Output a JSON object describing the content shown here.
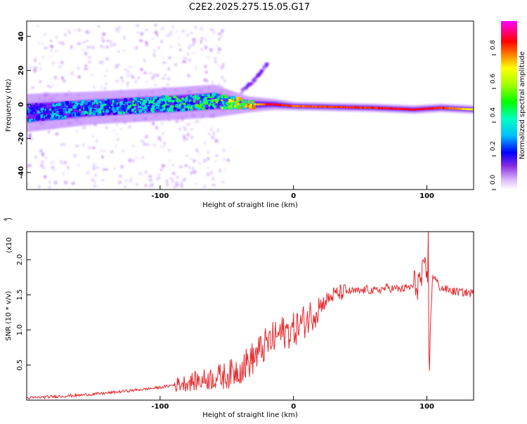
{
  "title": "C2E2.2025.275.15.05.G17",
  "colors": {
    "snr_line": "#e8262a",
    "axis": "#000000",
    "background": "#ffffff"
  },
  "chart_data": [
    {
      "type": "heatmap",
      "name": "spectrogram",
      "xlabel": "Height of straight line (km)",
      "ylabel": "Frequency (Hz)",
      "xlim": [
        -200,
        135
      ],
      "ylim": [
        -50,
        49
      ],
      "xticks": [
        -100,
        0,
        100
      ],
      "xtick_labels": [
        "-100",
        "0",
        "100"
      ],
      "yticks": [
        -40,
        -20,
        0,
        20,
        40
      ],
      "ytick_labels": [
        "-40",
        "-20",
        "0",
        "20",
        "40"
      ],
      "colorbar": {
        "label": "Normalized spectral amplitude",
        "range": [
          0,
          1
        ],
        "ticks": [
          0.0,
          0.2,
          0.4,
          0.6,
          0.8
        ],
        "tick_labels": [
          "0.0",
          "0.2",
          "0.4",
          "0.6",
          "0.8"
        ],
        "colormap": [
          "#ffffff",
          "#c8a0ff",
          "#8000ff",
          "#0000ff",
          "#00c8ff",
          "#00ff80",
          "#40ff00",
          "#ffff00",
          "#ff8000",
          "#ff0000",
          "#ff0080",
          "#ff00ff"
        ]
      },
      "ridge": [
        {
          "x": -200,
          "f": -5,
          "amp": 0.3,
          "spread": 7
        },
        {
          "x": -150,
          "f": -2,
          "amp": 0.35,
          "spread": 6
        },
        {
          "x": -100,
          "f": 0,
          "amp": 0.4,
          "spread": 6
        },
        {
          "x": -60,
          "f": 2,
          "amp": 0.45,
          "spread": 6
        },
        {
          "x": -35,
          "f": 0,
          "amp": 0.6,
          "spread": 3
        },
        {
          "x": -15,
          "f": 0,
          "amp": 0.85,
          "spread": 2
        },
        {
          "x": 0,
          "f": -1,
          "amp": 0.75,
          "spread": 1.5
        },
        {
          "x": 60,
          "f": -2,
          "amp": 0.8,
          "spread": 1.5
        },
        {
          "x": 90,
          "f": -3,
          "amp": 0.85,
          "spread": 1.5
        },
        {
          "x": 110,
          "f": -2,
          "amp": 0.8,
          "spread": 1.5
        },
        {
          "x": 135,
          "f": -3,
          "amp": 0.6,
          "spread": 1.5
        }
      ],
      "secondary_branch": [
        {
          "x": -40,
          "f": 8
        },
        {
          "x": -30,
          "f": 15
        },
        {
          "x": -20,
          "f": 25
        }
      ]
    },
    {
      "type": "line",
      "name": "snr",
      "xlabel": "Height of straight line (km)",
      "ylabel": "SNR (10 * v/v)",
      "yscale_note": "(x10",
      "yscale_exp": "4",
      "xlim": [
        -200,
        135
      ],
      "ylim": [
        0,
        2.4
      ],
      "xticks": [
        -100,
        0,
        100
      ],
      "xtick_labels": [
        "-100",
        "0",
        "100"
      ],
      "yticks": [
        0.5,
        1.0,
        1.5,
        2.0
      ],
      "ytick_labels": [
        "0.5",
        "1.0",
        "1.5",
        "2.0"
      ],
      "series": [
        {
          "name": "SNR",
          "x": [
            -200,
            -180,
            -160,
            -140,
            -120,
            -100,
            -80,
            -70,
            -60,
            -50,
            -40,
            -30,
            -20,
            -10,
            0,
            10,
            20,
            30,
            40,
            50,
            55,
            60,
            70,
            80,
            90,
            95,
            100,
            102,
            104,
            110,
            120,
            135
          ],
          "y": [
            0.03,
            0.05,
            0.07,
            0.1,
            0.14,
            0.18,
            0.25,
            0.28,
            0.32,
            0.35,
            0.45,
            0.6,
            0.8,
            0.95,
            1.0,
            1.15,
            1.35,
            1.5,
            1.55,
            1.55,
            1.58,
            1.55,
            1.6,
            1.58,
            1.62,
            1.7,
            1.85,
            0.42,
            1.8,
            1.6,
            1.55,
            1.52
          ]
        }
      ]
    }
  ]
}
